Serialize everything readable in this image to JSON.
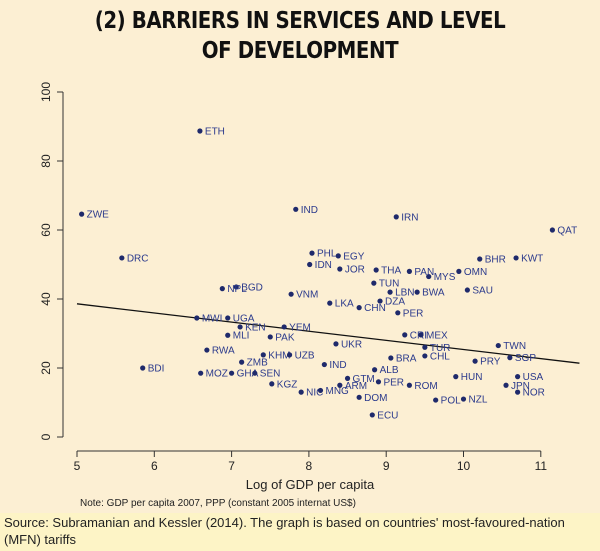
{
  "title": [
    "(2) BARRIERS IN SERVICES AND LEVEL",
    "OF DEVELOPMENT"
  ],
  "note": "Note: GDP per capita 2007, PPP (constant 2005 internat US$)",
  "source": "Source: Subramanian and Kessler (2014). The graph is based on countries' most-favoured-nation (MFN) tariffs",
  "chart_data": {
    "type": "scatter",
    "title": "(2) BARRIERS IN SERVICES AND LEVEL OF DEVELOPMENT",
    "xlabel": "Log of GDP per capita",
    "ylabel": "",
    "xlim": [
      4.9,
      11.6
    ],
    "ylim": [
      0,
      100
    ],
    "xticks": [
      5,
      6,
      7,
      8,
      9,
      10,
      11
    ],
    "yticks": [
      0,
      20,
      40,
      60,
      80,
      100
    ],
    "grid": false,
    "fit_line": {
      "x": [
        5,
        11.5
      ],
      "y": [
        38.6,
        21.4
      ]
    },
    "points": [
      {
        "label": "ETH",
        "x": 6.59,
        "y": 88.7
      },
      {
        "label": "ZWE",
        "x": 5.06,
        "y": 64.6
      },
      {
        "label": "DRC",
        "x": 5.58,
        "y": 51.9
      },
      {
        "label": "BDI",
        "x": 5.85,
        "y": 20.0
      },
      {
        "label": "IND",
        "x": 7.83,
        "y": 66.0
      },
      {
        "label": "IRN",
        "x": 9.13,
        "y": 63.8
      },
      {
        "label": "QAT",
        "x": 11.15,
        "y": 60.0
      },
      {
        "label": "KWT",
        "x": 10.68,
        "y": 51.9
      },
      {
        "label": "BHR",
        "x": 10.21,
        "y": 51.6
      },
      {
        "label": "OMN",
        "x": 9.94,
        "y": 48.0
      },
      {
        "label": "SAU",
        "x": 10.05,
        "y": 42.6
      },
      {
        "label": "MYS",
        "x": 9.55,
        "y": 46.5
      },
      {
        "label": "PAN",
        "x": 9.3,
        "y": 48.0
      },
      {
        "label": "THA",
        "x": 8.87,
        "y": 48.4
      },
      {
        "label": "TUN",
        "x": 8.84,
        "y": 44.6
      },
      {
        "label": "LBN",
        "x": 9.05,
        "y": 42.0
      },
      {
        "label": "BWA",
        "x": 9.4,
        "y": 42.0
      },
      {
        "label": "DZA",
        "x": 8.92,
        "y": 39.4
      },
      {
        "label": "PHL",
        "x": 8.04,
        "y": 53.3
      },
      {
        "label": "EGY",
        "x": 8.38,
        "y": 52.5
      },
      {
        "label": "IDN",
        "x": 8.01,
        "y": 50.0
      },
      {
        "label": "JOR",
        "x": 8.4,
        "y": 48.7
      },
      {
        "label": "BGD",
        "x": 7.06,
        "y": 43.5
      },
      {
        "label": "NPL",
        "x": 6.88,
        "y": 43.0
      },
      {
        "label": "VNM",
        "x": 7.77,
        "y": 41.4
      },
      {
        "label": "LKA",
        "x": 8.27,
        "y": 38.8
      },
      {
        "label": "CHN",
        "x": 8.65,
        "y": 37.5
      },
      {
        "label": "PER",
        "x": 9.15,
        "y": 36.0
      },
      {
        "label": "MWI",
        "x": 6.55,
        "y": 34.5
      },
      {
        "label": "UGA",
        "x": 6.95,
        "y": 34.5
      },
      {
        "label": "YEM",
        "x": 7.68,
        "y": 31.9
      },
      {
        "label": "KEN",
        "x": 7.11,
        "y": 31.9
      },
      {
        "label": "MLI",
        "x": 6.95,
        "y": 29.5
      },
      {
        "label": "PAK",
        "x": 7.5,
        "y": 29.0
      },
      {
        "label": "RWA",
        "x": 6.68,
        "y": 25.2
      },
      {
        "label": "KHM",
        "x": 7.41,
        "y": 23.8
      },
      {
        "label": "UZB",
        "x": 7.75,
        "y": 23.8
      },
      {
        "label": "ZMB",
        "x": 7.13,
        "y": 21.7
      },
      {
        "label": "MOZ",
        "x": 6.6,
        "y": 18.5
      },
      {
        "label": "GHA",
        "x": 7.0,
        "y": 18.5
      },
      {
        "label": "SEN",
        "x": 7.3,
        "y": 18.5
      },
      {
        "label": "KGZ",
        "x": 7.52,
        "y": 15.4
      },
      {
        "label": "NIC",
        "x": 7.9,
        "y": 13.0
      },
      {
        "label": "MNG",
        "x": 8.15,
        "y": 13.5
      },
      {
        "label": "IND2",
        "x": 8.2,
        "y": 21.0
      },
      {
        "label": "GTM",
        "x": 8.5,
        "y": 17.0
      },
      {
        "label": "ARM",
        "x": 8.4,
        "y": 15.0
      },
      {
        "label": "DOM",
        "x": 8.65,
        "y": 11.5
      },
      {
        "label": "UKR",
        "x": 8.35,
        "y": 27.0
      },
      {
        "label": "ALB",
        "x": 8.85,
        "y": 19.5
      },
      {
        "label": "PER2",
        "x": 8.9,
        "y": 16.0
      },
      {
        "label": "ECU",
        "x": 8.82,
        "y": 6.4
      },
      {
        "label": "BRA",
        "x": 9.06,
        "y": 22.9
      },
      {
        "label": "CRI",
        "x": 9.24,
        "y": 29.6
      },
      {
        "label": "MEX",
        "x": 9.45,
        "y": 29.6
      },
      {
        "label": "TUR",
        "x": 9.5,
        "y": 26.0
      },
      {
        "label": "CHL",
        "x": 9.5,
        "y": 23.5
      },
      {
        "label": "ROM",
        "x": 9.3,
        "y": 15.0
      },
      {
        "label": "POL",
        "x": 9.64,
        "y": 10.7
      },
      {
        "label": "NZL",
        "x": 10.0,
        "y": 11.0
      },
      {
        "label": "HUN",
        "x": 9.9,
        "y": 17.5
      },
      {
        "label": "PRY",
        "x": 10.15,
        "y": 22.0
      },
      {
        "label": "TWN",
        "x": 10.45,
        "y": 26.5
      },
      {
        "label": "SGP",
        "x": 10.6,
        "y": 23.0
      },
      {
        "label": "USA",
        "x": 10.7,
        "y": 17.5
      },
      {
        "label": "JPN",
        "x": 10.55,
        "y": 15.0
      },
      {
        "label": "NOR",
        "x": 10.7,
        "y": 13.0
      }
    ]
  }
}
